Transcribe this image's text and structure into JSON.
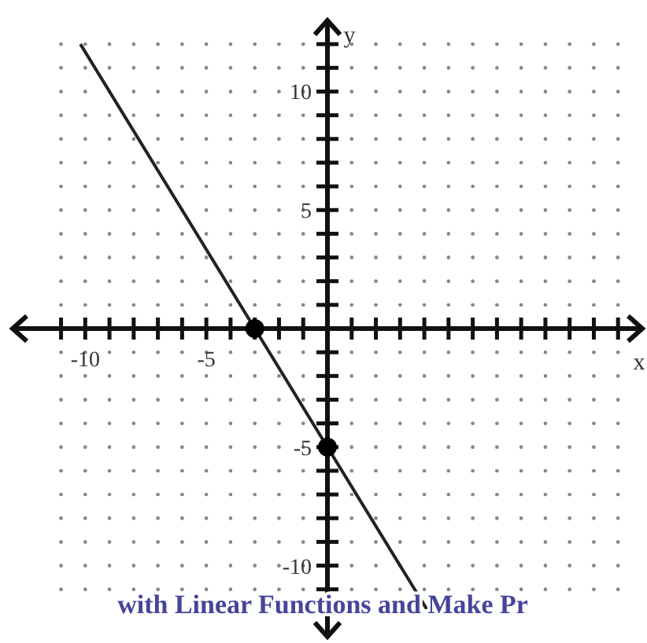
{
  "chart_data": {
    "type": "line",
    "xlabel": "x",
    "ylabel": "y",
    "xlim": [
      -13,
      13
    ],
    "ylim": [
      -13,
      13
    ],
    "xticks": [
      {
        "value": -11,
        "label": null
      },
      {
        "value": -10,
        "label": "-10"
      },
      {
        "value": -9,
        "label": null
      },
      {
        "value": -8,
        "label": null
      },
      {
        "value": -7,
        "label": null
      },
      {
        "value": -6,
        "label": null
      },
      {
        "value": -5,
        "label": "-5"
      },
      {
        "value": -4,
        "label": null
      },
      {
        "value": -3,
        "label": null
      },
      {
        "value": -2,
        "label": null
      },
      {
        "value": -1,
        "label": null
      },
      {
        "value": 1,
        "label": null
      },
      {
        "value": 2,
        "label": null
      },
      {
        "value": 3,
        "label": null
      },
      {
        "value": 4,
        "label": null
      },
      {
        "value": 5,
        "label": null
      },
      {
        "value": 6,
        "label": null
      },
      {
        "value": 7,
        "label": null
      },
      {
        "value": 8,
        "label": null
      },
      {
        "value": 9,
        "label": null
      },
      {
        "value": 10,
        "label": null
      },
      {
        "value": 11,
        "label": null
      },
      {
        "value": 12,
        "label": null
      }
    ],
    "yticks": [
      {
        "value": -11,
        "label": null
      },
      {
        "value": -10,
        "label": "-10"
      },
      {
        "value": -9,
        "label": null
      },
      {
        "value": -8,
        "label": null
      },
      {
        "value": -7,
        "label": null
      },
      {
        "value": -6,
        "label": null
      },
      {
        "value": -5,
        "label": "-5"
      },
      {
        "value": -4,
        "label": null
      },
      {
        "value": -3,
        "label": null
      },
      {
        "value": -2,
        "label": null
      },
      {
        "value": -1,
        "label": null
      },
      {
        "value": 1,
        "label": null
      },
      {
        "value": 2,
        "label": null
      },
      {
        "value": 3,
        "label": null
      },
      {
        "value": 4,
        "label": null
      },
      {
        "value": 5,
        "label": "5"
      },
      {
        "value": 6,
        "label": null
      },
      {
        "value": 7,
        "label": null
      },
      {
        "value": 8,
        "label": null
      },
      {
        "value": 9,
        "label": null
      },
      {
        "value": 10,
        "label": "10"
      },
      {
        "value": 11,
        "label": null
      },
      {
        "value": 12,
        "label": null
      }
    ],
    "grid": true,
    "series": [
      {
        "color": "#222222",
        "x": [
          -10.2,
          4.2
        ],
        "values": [
          12,
          -12
        ],
        "marker": "none"
      },
      {
        "type": "scatter",
        "color": "#000000",
        "x": [
          -3,
          0
        ],
        "values": [
          0,
          -5
        ],
        "marker": "circle"
      }
    ],
    "annotations": [
      "with Linear Functions and Make Pr"
    ]
  }
}
